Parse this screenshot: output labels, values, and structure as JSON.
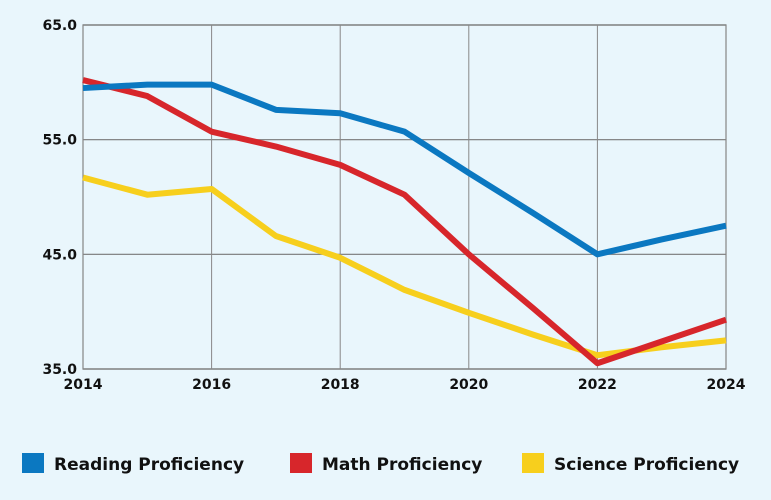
{
  "chart_data": {
    "type": "line",
    "title": "",
    "xlabel": "",
    "ylabel": "",
    "x": [
      2014,
      2015,
      2016,
      2017,
      2018,
      2019,
      2020,
      2021,
      2022,
      2023,
      2024
    ],
    "xticks": [
      "2014",
      "2016",
      "2018",
      "2020",
      "2022",
      "2024"
    ],
    "yticks": [
      "35.0",
      "45.0",
      "55.0",
      "65.0"
    ],
    "xlim": [
      2014,
      2024
    ],
    "ylim": [
      35,
      65
    ],
    "grid": true,
    "legend": "bottom",
    "series": [
      {
        "name": "Reading Proficiency",
        "color": "#0b78c1",
        "values": [
          59.5,
          59.8,
          59.8,
          57.6,
          57.3,
          55.7,
          52.1,
          48.6,
          45.0,
          46.3,
          47.5
        ]
      },
      {
        "name": "Math Proficiency",
        "color": "#d7262b",
        "values": [
          60.2,
          58.8,
          55.7,
          54.4,
          52.8,
          50.2,
          45.0,
          40.3,
          35.5,
          37.4,
          39.3
        ]
      },
      {
        "name": "Science Proficiency",
        "color": "#f7cf1d",
        "values": [
          51.7,
          50.2,
          50.7,
          46.6,
          44.7,
          41.9,
          39.9,
          38.0,
          36.2,
          36.9,
          37.5
        ]
      }
    ]
  }
}
